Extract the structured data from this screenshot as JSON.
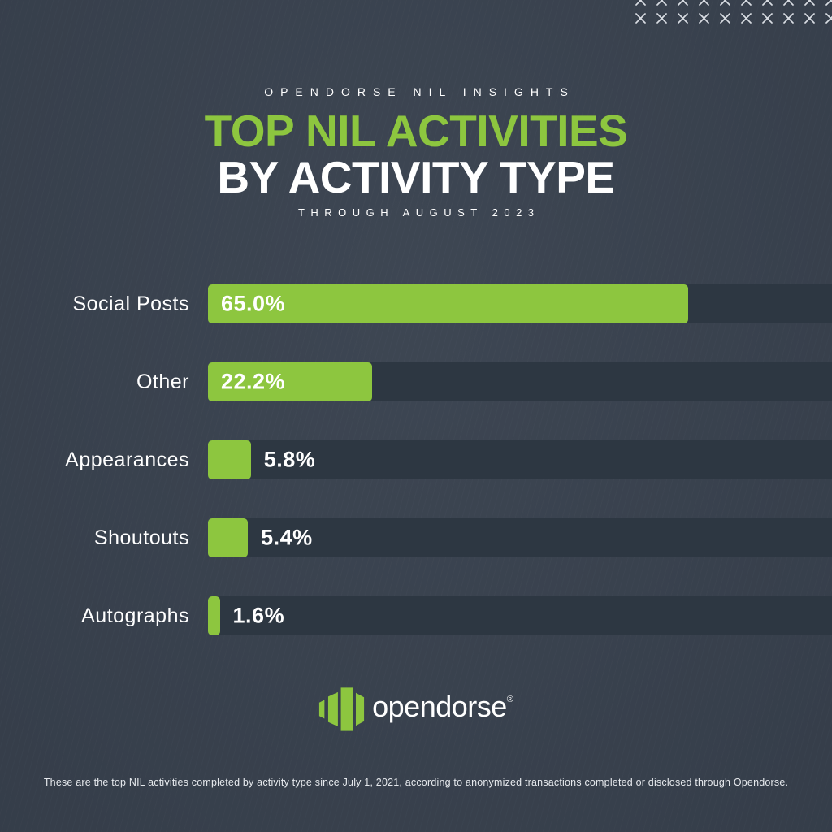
{
  "colors": {
    "background": "#39424f",
    "bar_track": "#2d3742",
    "accent_green": "#8dc63f",
    "text": "#ffffff",
    "footer_text": "#e6e9ed",
    "x_marks": "#d9dde3"
  },
  "header": {
    "eyebrow": "OPENDORSE NIL INSIGHTS",
    "title_line1": "TOP NIL ACTIVITIES",
    "title_line2": "BY ACTIVITY TYPE",
    "subtitle": "THROUGH AUGUST 2023"
  },
  "chart_data": {
    "type": "bar",
    "orientation": "horizontal",
    "title": "TOP NIL ACTIVITIES BY ACTIVITY TYPE",
    "subtitle": "THROUGH AUGUST 2023",
    "categories": [
      "Social Posts",
      "Other",
      "Appearances",
      "Shoutouts",
      "Autographs"
    ],
    "values": [
      65.0,
      22.2,
      5.8,
      5.4,
      1.6
    ],
    "value_labels": [
      "65.0%",
      "22.2%",
      "5.8%",
      "5.4%",
      "1.6%"
    ],
    "unit": "%",
    "xlabel": "",
    "ylabel": "",
    "xlim": [
      0,
      84.6
    ],
    "grid": false,
    "legend": false,
    "bar_color": "#8dc63f",
    "track_color": "#2d3742",
    "value_label_color": "#ffffff"
  },
  "decor": {
    "x_pattern": {
      "rows": 2,
      "cols": 10,
      "icon": "x-mark-icon",
      "color": "#d9dde3"
    }
  },
  "logo": {
    "wordmark": "opendorse",
    "registered": "®",
    "mark_icon": "opendorse-mark"
  },
  "footer": {
    "note": "These are the top NIL activities completed by activity type since July 1, 2021, according to anonymized transactions completed or disclosed through Opendorse."
  }
}
